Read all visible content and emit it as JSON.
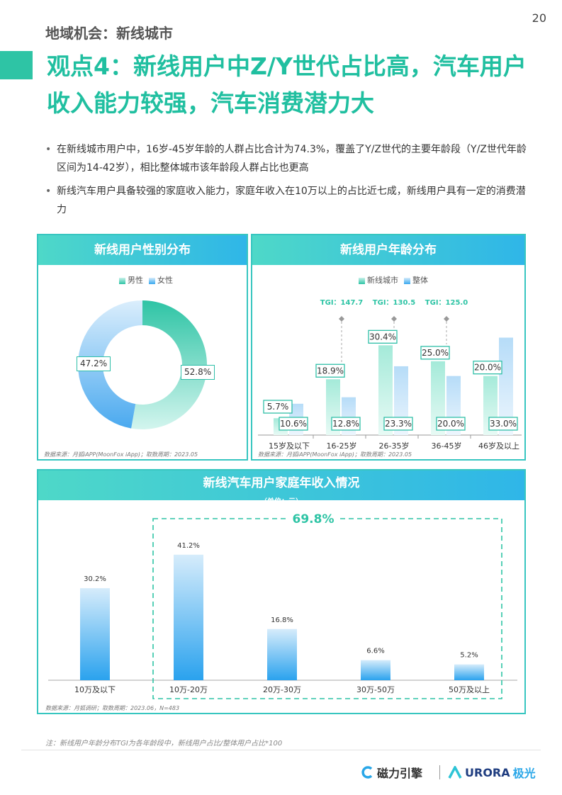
{
  "page_number": "20",
  "section_label": "地域机会：新线城市",
  "title": "观点4：新线用户中Z/Y世代占比高，汽车用户收入能力较强，汽车消费潜力大",
  "bullets": [
    "在新线城市用户中，16岁-45岁年龄的人群占比合计为74.3%，覆盖了Y/Z世代的主要年龄段（Y/Z世代年龄区间为14-42岁），相比整体城市该年龄段人群占比也更高",
    "新线汽车用户具备较强的家庭收入能力，家庭年收入在10万以上的占比近七成，新线用户具有一定的消费潜力"
  ],
  "colors": {
    "teal": "#2ec4a5",
    "blue": "#38a8ef",
    "light_teal": "#c8f2ea",
    "light_blue": "#d6ecfb"
  },
  "gender_panel": {
    "header": "新线用户性别分布",
    "legend": [
      "男性",
      "女性"
    ],
    "source": "数据来源：月狐iAPP(MoonFox iApp)；取数周期：2023.05"
  },
  "age_panel": {
    "header": "新线用户年龄分布",
    "legend": [
      "新线城市",
      "整体"
    ],
    "source": "数据来源：月狐iAPP(MoonFox iApp)；取数周期：2023.05"
  },
  "income_panel": {
    "header": "新线汽车用户家庭年收入情况",
    "unit": "（单位：元）",
    "highlight_label": "69.8%",
    "source": "数据来源：月狐调研；取数周期：2023.06，N=483"
  },
  "chart_data": [
    {
      "type": "pie",
      "title": "新线用户性别分布",
      "categories": [
        "男性",
        "女性"
      ],
      "values": [
        52.8,
        47.2
      ],
      "value_labels": [
        "52.8%",
        "47.2%"
      ],
      "donut": true,
      "legend_position": "top"
    },
    {
      "type": "bar",
      "title": "新线用户年龄分布",
      "categories": [
        "15岁及以下",
        "16-25岁",
        "26-35岁",
        "36-45岁",
        "46岁及以上"
      ],
      "series": [
        {
          "name": "新线城市",
          "values": [
            5.7,
            18.9,
            30.4,
            25.0,
            20.0
          ],
          "labels": [
            "5.7%",
            "18.9%",
            "30.4%",
            "25.0%",
            "20.0%"
          ]
        },
        {
          "name": "整体",
          "values": [
            10.6,
            12.8,
            23.3,
            20.0,
            33.0
          ],
          "labels": [
            "10.6%",
            "12.8%",
            "23.3%",
            "20.0%",
            "33.0%"
          ]
        }
      ],
      "annotations": [
        {
          "category": "16-25岁",
          "text": "TGI：147.7"
        },
        {
          "category": "26-35岁",
          "text": "TGI：130.5"
        },
        {
          "category": "36-45岁",
          "text": "TGI：125.0"
        }
      ],
      "legend_position": "top",
      "ylim": [
        0,
        36
      ]
    },
    {
      "type": "bar",
      "title": "新线汽车用户家庭年收入情况",
      "categories": [
        "10万及以下",
        "10万-20万",
        "20万-30万",
        "30万-50万",
        "50万及以上"
      ],
      "values": [
        30.2,
        41.2,
        16.8,
        6.6,
        5.2
      ],
      "value_labels": [
        "30.2%",
        "41.2%",
        "16.8%",
        "6.6%",
        "5.2%"
      ],
      "ylim": [
        0,
        48
      ],
      "highlight": {
        "categories": [
          "10万-20万",
          "20万-30万",
          "30万-50万",
          "50万及以上"
        ],
        "label": "69.8%"
      }
    }
  ],
  "note": "注：新线用户年龄分布TGI为各年龄段中，新线用户占比/整体用户占比*100",
  "footer": {
    "logo1": "磁力引擎",
    "logo2": "URORA",
    "logo2_suffix": "极光"
  }
}
